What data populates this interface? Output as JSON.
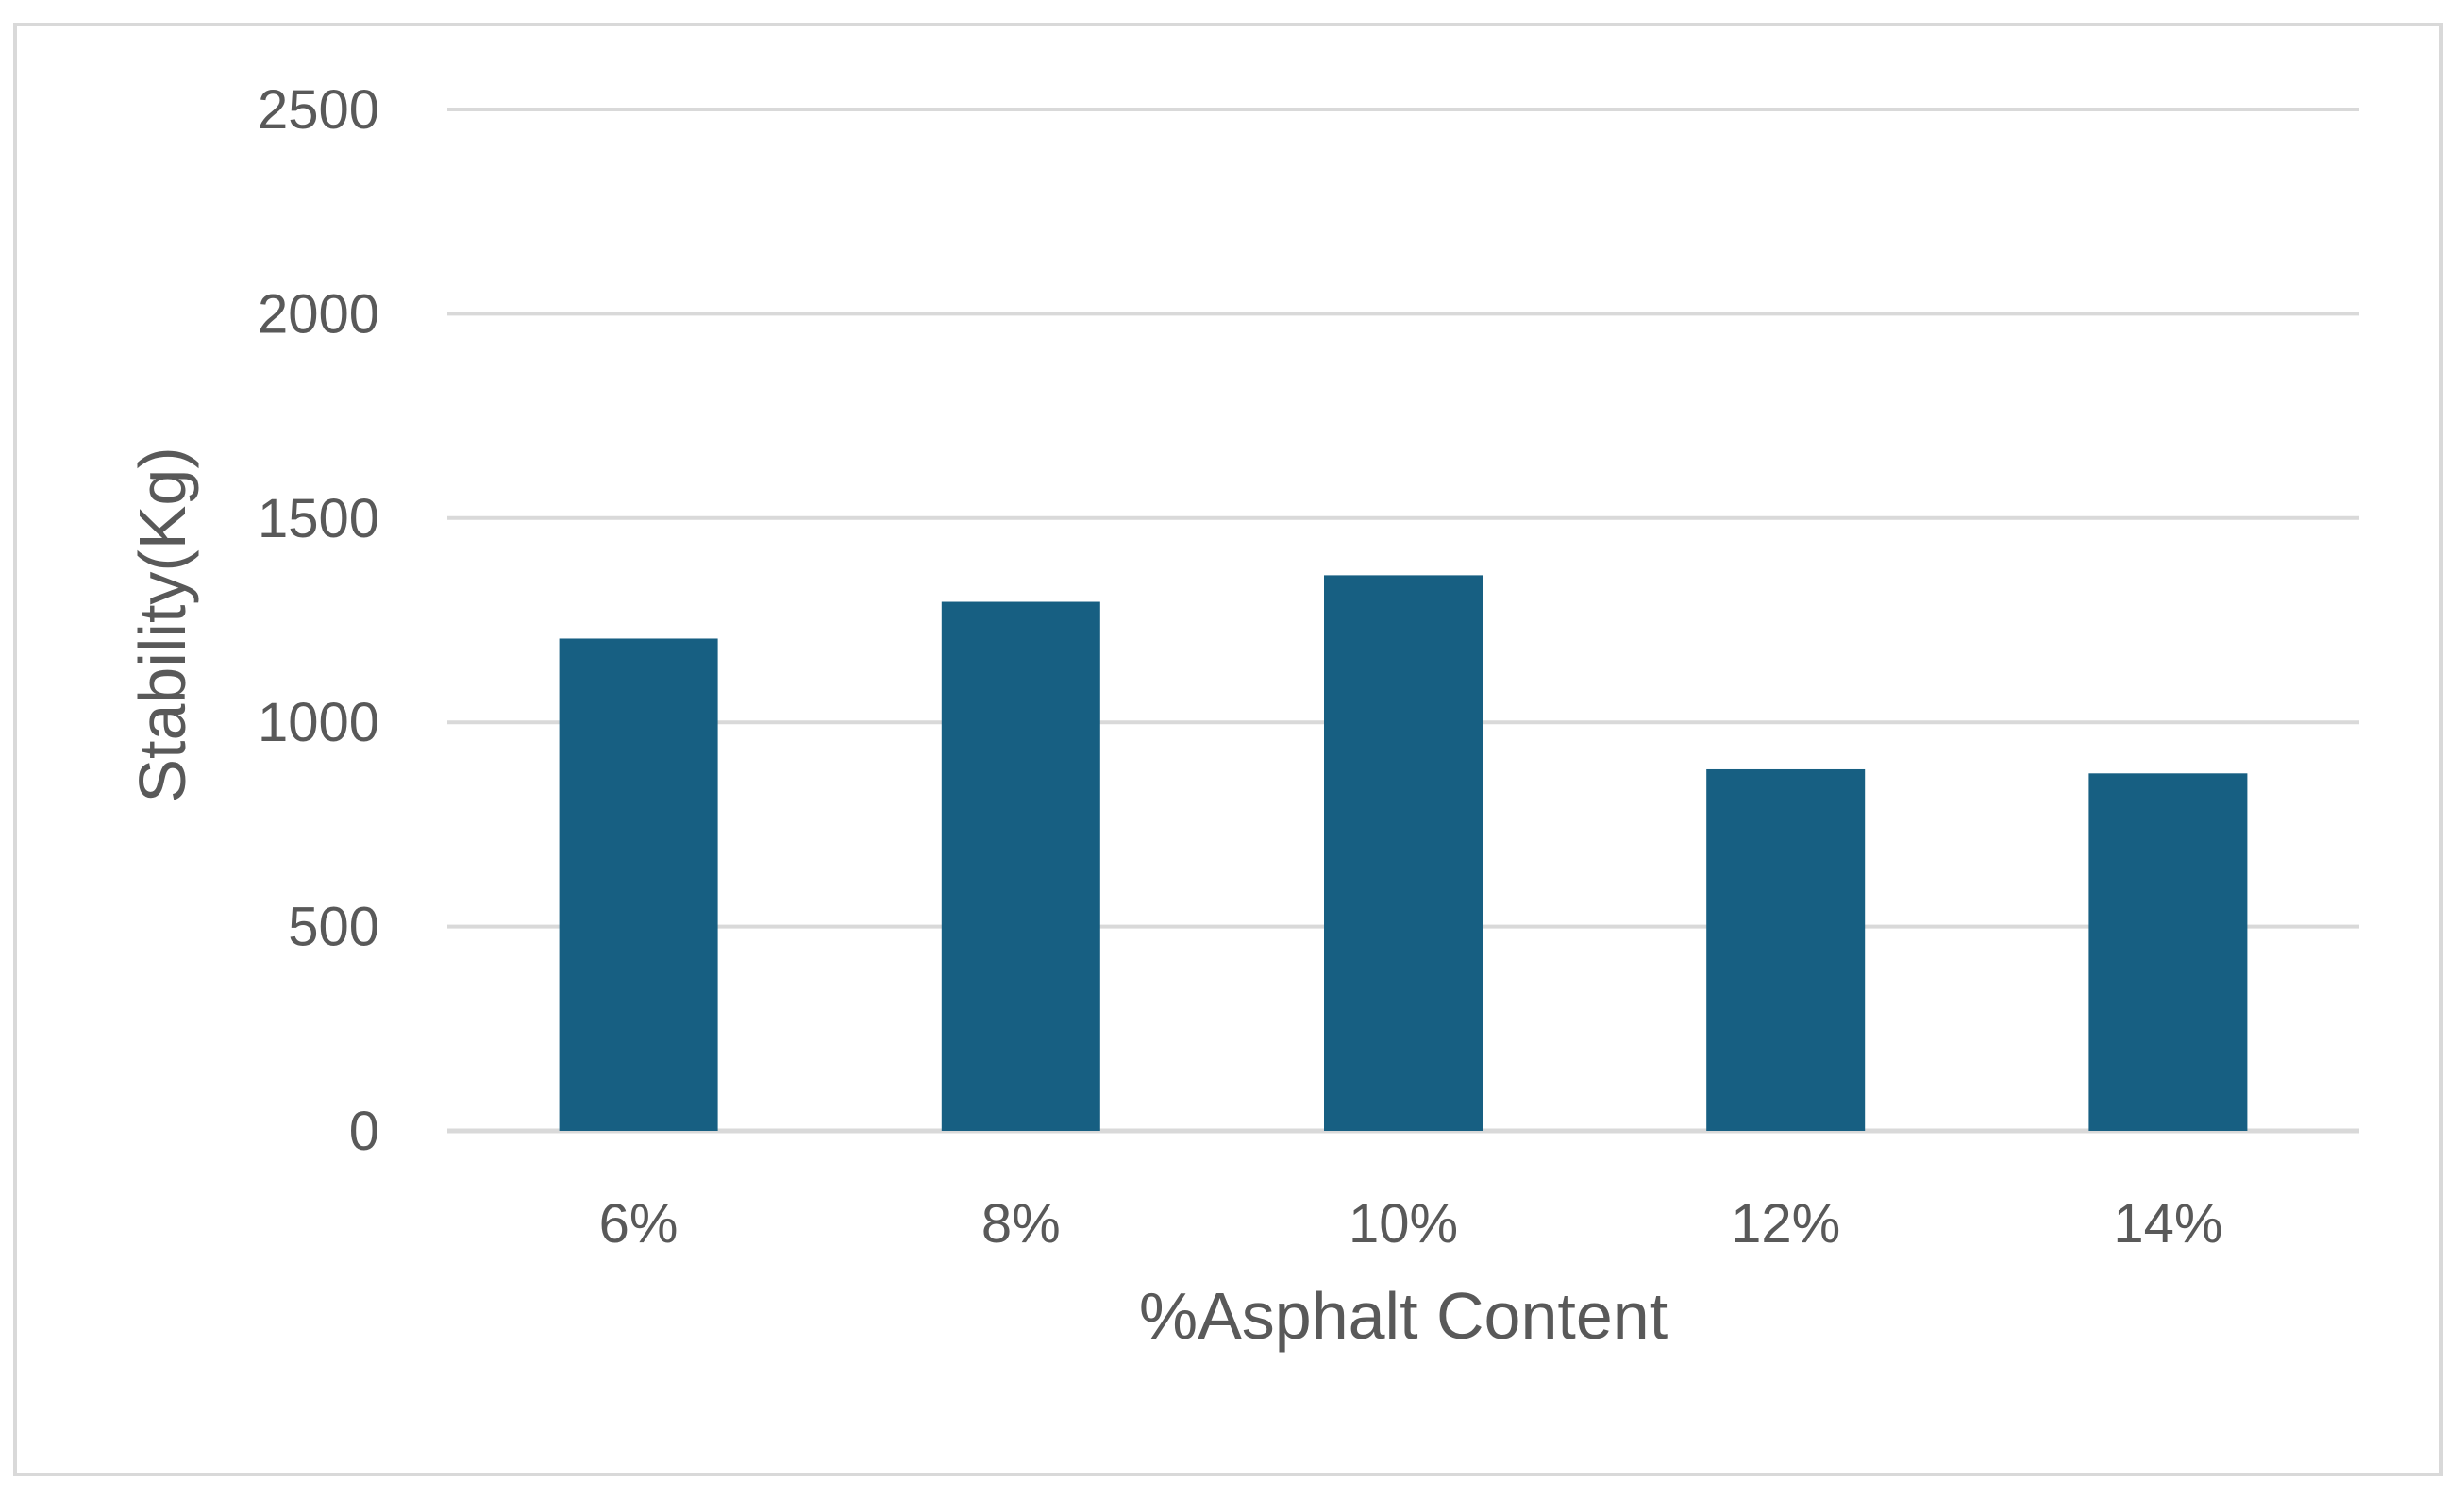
{
  "chart_data": {
    "type": "bar",
    "title": "",
    "xlabel": "%Asphalt Content",
    "ylabel": "Stability(Kg)",
    "categories": [
      "6%",
      "8%",
      "10%",
      "12%",
      "14%"
    ],
    "values": [
      1205,
      1295,
      1360,
      885,
      875
    ],
    "ylim": [
      0,
      2500
    ],
    "yticks": [
      0,
      500,
      1000,
      1500,
      2000,
      2500
    ],
    "grid": true,
    "legend": "none",
    "colors": {
      "bar": "#175f82",
      "grid": "#d9d9d9",
      "text": "#595959"
    }
  }
}
